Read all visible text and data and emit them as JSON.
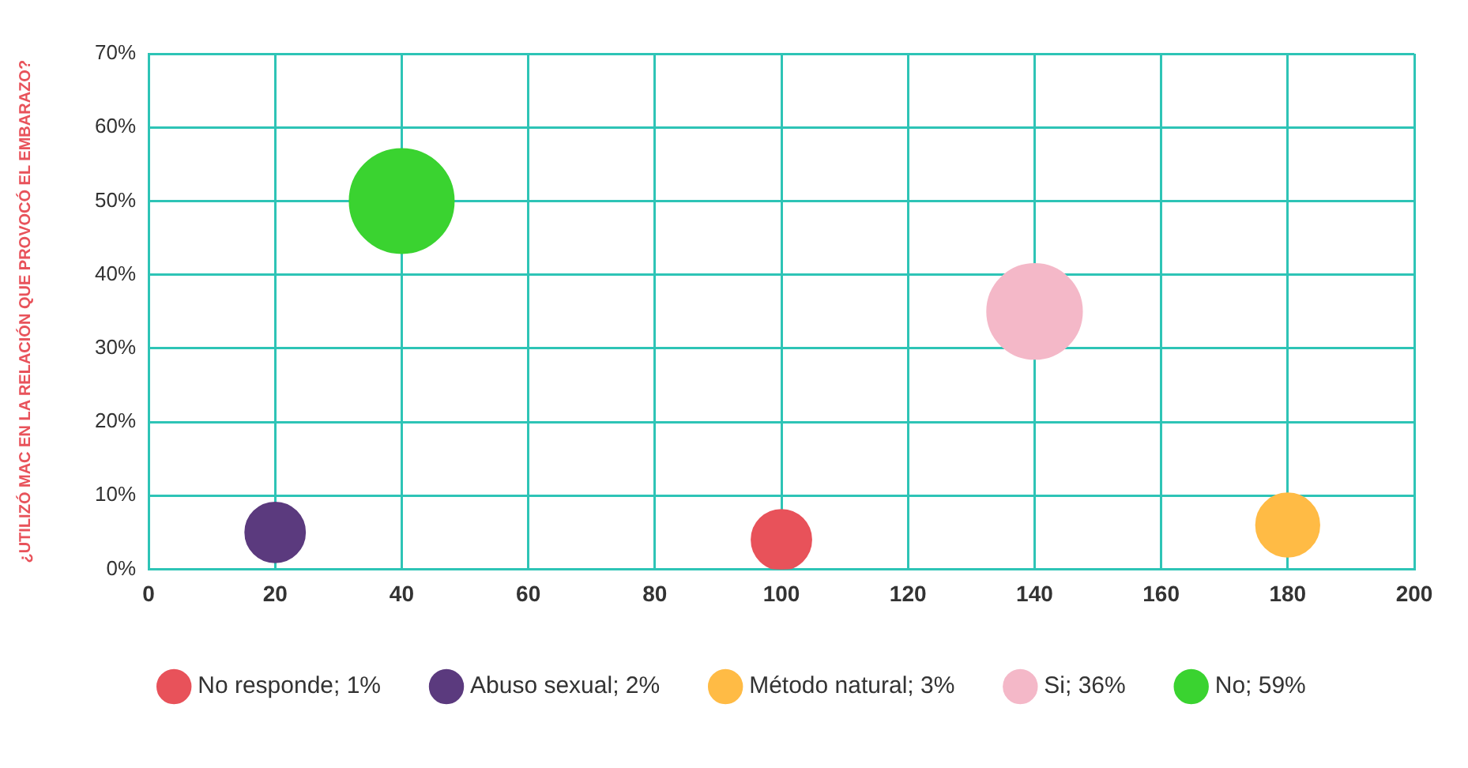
{
  "chart_data": {
    "type": "bubble",
    "ylabel": "¿UTILIZÓ MAC EN LA RELACIÓN QUE PROVOCÓ EL EMBARAZO?",
    "series": [
      {
        "name": "No responde; 1%",
        "color": "#e8525a",
        "x": [
          100
        ],
        "values": [
          4
        ],
        "sizes": [
          0.33
        ]
      },
      {
        "name": "Abuso sexual; 2%",
        "color": "#5b3a7e",
        "x": [
          20
        ],
        "values": [
          5
        ],
        "sizes": [
          0.33
        ]
      },
      {
        "name": "Método natural; 3%",
        "color": "#ffbb45",
        "x": [
          180
        ],
        "values": [
          6
        ],
        "sizes": [
          0.37
        ]
      },
      {
        "name": "Si; 36%",
        "color": "#f4b8c8",
        "x": [
          140
        ],
        "values": [
          35
        ],
        "sizes": [
          0.83
        ]
      },
      {
        "name": "No; 59%",
        "color": "#3ad330",
        "x": [
          40
        ],
        "values": [
          50
        ],
        "sizes": [
          1
        ]
      }
    ],
    "xlim": [
      0,
      200
    ],
    "xticks": [
      0,
      20,
      40,
      60,
      80,
      100,
      120,
      140,
      160,
      180,
      200
    ],
    "ylim": [
      0,
      70
    ],
    "yticks": [
      {
        "value": 0,
        "label": "0%"
      },
      {
        "value": 10,
        "label": "10%"
      },
      {
        "value": 20,
        "label": "20%"
      },
      {
        "value": 30,
        "label": "30%"
      },
      {
        "value": 40,
        "label": "40%"
      },
      {
        "value": 50,
        "label": "50%"
      },
      {
        "value": 60,
        "label": "60%"
      },
      {
        "value": 70,
        "label": "70%"
      }
    ],
    "grid": true,
    "legend": "bottom"
  }
}
